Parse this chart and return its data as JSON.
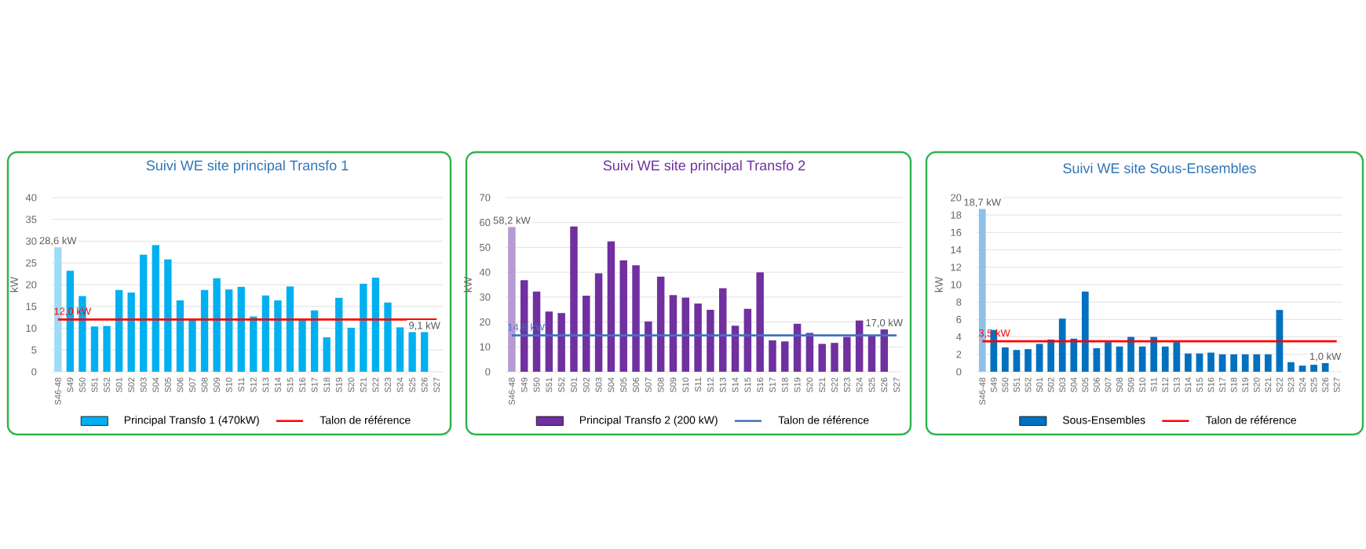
{
  "chart_data": [
    {
      "type": "bar",
      "title": "Suivi WE site principal Transfo 1",
      "ylabel": "kW",
      "categories": [
        "S46-48",
        "S49",
        "S50",
        "S51",
        "S52",
        "S01",
        "S02",
        "S03",
        "S04",
        "S05",
        "S06",
        "S07",
        "S08",
        "S09",
        "S10",
        "S11",
        "S12",
        "S13",
        "S14",
        "S15",
        "S16",
        "S17",
        "S18",
        "S19",
        "S20",
        "S21",
        "S22",
        "S23",
        "S24",
        "S25",
        "S26",
        "S27"
      ],
      "ylim": [
        0,
        40
      ],
      "yticks": [
        0,
        5,
        10,
        15,
        20,
        25,
        30,
        35,
        40
      ],
      "grid": "y",
      "legend": "bottom",
      "series": [
        {
          "name": "Principal Transfo 1 (470kW)",
          "color": "#00b0f0",
          "colors": [
            "#9fdcf5",
            "#00b0f0",
            "#00b0f0",
            "#00b0f0",
            "#00b0f0",
            "#00b0f0",
            "#00b0f0",
            "#00b0f0",
            "#00b0f0",
            "#00b0f0",
            "#00b0f0",
            "#00b0f0",
            "#00b0f0",
            "#00b0f0",
            "#00b0f0",
            "#00b0f0",
            "#00b0f0",
            "#00b0f0",
            "#00b0f0",
            "#00b0f0",
            "#00b0f0",
            "#00b0f0",
            "#00b0f0",
            "#00b0f0",
            "#00b0f0",
            "#00b0f0",
            "#00b0f0",
            "#00b0f0",
            "#00b0f0",
            "#00b0f0",
            "#00b0f0",
            "#00b0f0"
          ],
          "values": [
            28.6,
            23.2,
            17.4,
            10.4,
            10.5,
            18.8,
            18.2,
            26.9,
            29.1,
            25.8,
            16.4,
            12.0,
            18.8,
            21.5,
            18.9,
            19.5,
            12.7,
            17.5,
            16.4,
            19.6,
            12.0,
            14.1,
            7.9,
            17.0,
            10.1,
            20.2,
            21.6,
            15.9,
            10.2,
            9.1,
            9.1,
            null
          ],
          "value_labels": [
            "28,6 kW",
            null,
            null,
            null,
            null,
            null,
            null,
            null,
            null,
            null,
            null,
            null,
            null,
            null,
            null,
            null,
            null,
            null,
            null,
            null,
            null,
            null,
            null,
            null,
            null,
            null,
            null,
            null,
            null,
            null,
            "9,1 kW",
            null
          ]
        },
        {
          "type": "line",
          "name": "Talon de référence",
          "color": "#ff0000",
          "values": [
            12.0,
            12.0,
            12.0,
            12.0,
            12.0,
            12.0,
            12.0,
            12.0,
            12.0,
            12.0,
            12.0,
            12.0,
            12.0,
            12.0,
            12.0,
            12.0,
            12.0,
            12.0,
            12.0,
            12.0,
            12.0,
            12.0,
            12.0,
            12.0,
            12.0,
            12.0,
            12.0,
            12.0,
            12.0,
            12.0,
            12.0,
            12.0
          ],
          "value_labels": [
            "12,0 kW",
            null,
            null,
            null,
            null,
            null,
            null,
            null,
            null,
            null,
            null,
            null,
            null,
            null,
            null,
            null,
            null,
            null,
            null,
            null,
            null,
            null,
            null,
            null,
            null,
            null,
            null,
            null,
            null,
            null,
            null,
            null
          ]
        }
      ]
    },
    {
      "type": "bar",
      "title": "Suivi WE site principal Transfo 2",
      "ylabel": "kW",
      "categories": [
        "S46-48",
        "S49",
        "S50",
        "S51",
        "S52",
        "S01",
        "S02",
        "S03",
        "S04",
        "S05",
        "S06",
        "S07",
        "S08",
        "S09",
        "S10",
        "S11",
        "S12",
        "S13",
        "S14",
        "S15",
        "S16",
        "S17",
        "S18",
        "S19",
        "S20",
        "S21",
        "S22",
        "S23",
        "S24",
        "S25",
        "S26",
        "S27"
      ],
      "ylim": [
        0,
        70
      ],
      "yticks": [
        0,
        10,
        20,
        30,
        40,
        50,
        60,
        70
      ],
      "grid": "y",
      "legend": "bottom",
      "series": [
        {
          "name": "Principal Transfo 2 (200 kW)",
          "color": "#7030a0",
          "colors": [
            "#b89ad2",
            "#7030a0",
            "#7030a0",
            "#7030a0",
            "#7030a0",
            "#7030a0",
            "#7030a0",
            "#7030a0",
            "#7030a0",
            "#7030a0",
            "#7030a0",
            "#7030a0",
            "#7030a0",
            "#7030a0",
            "#7030a0",
            "#7030a0",
            "#7030a0",
            "#7030a0",
            "#7030a0",
            "#7030a0",
            "#7030a0",
            "#7030a0",
            "#7030a0",
            "#7030a0",
            "#7030a0",
            "#7030a0",
            "#7030a0",
            "#7030a0",
            "#7030a0",
            "#7030a0",
            "#7030a0",
            "#7030a0"
          ],
          "values": [
            58.2,
            36.8,
            32.2,
            24.2,
            23.6,
            58.4,
            30.6,
            39.6,
            52.4,
            44.8,
            42.8,
            20.2,
            38.2,
            30.8,
            29.8,
            27.4,
            24.9,
            33.6,
            18.5,
            25.3,
            40.0,
            12.6,
            12.2,
            19.3,
            15.6,
            11.2,
            11.6,
            14.0,
            20.6,
            14.6,
            17.0,
            null
          ],
          "value_labels": [
            "58,2 kW",
            null,
            null,
            null,
            null,
            null,
            null,
            null,
            null,
            null,
            null,
            null,
            null,
            null,
            null,
            null,
            null,
            null,
            null,
            null,
            null,
            null,
            null,
            null,
            null,
            null,
            null,
            null,
            null,
            null,
            "17,0 kW",
            null
          ]
        },
        {
          "type": "line",
          "name": "Talon de référence",
          "color": "#4472c4",
          "values": [
            14.6,
            14.6,
            14.6,
            14.6,
            14.6,
            14.6,
            14.6,
            14.6,
            14.6,
            14.6,
            14.6,
            14.6,
            14.6,
            14.6,
            14.6,
            14.6,
            14.6,
            14.6,
            14.6,
            14.6,
            14.6,
            14.6,
            14.6,
            14.6,
            14.6,
            14.6,
            14.6,
            14.6,
            14.6,
            14.6,
            14.6,
            14.6
          ],
          "value_labels": [
            "14,6 kW",
            null,
            null,
            null,
            null,
            null,
            null,
            null,
            null,
            null,
            null,
            null,
            null,
            null,
            null,
            null,
            null,
            null,
            null,
            null,
            null,
            null,
            null,
            null,
            null,
            null,
            null,
            null,
            null,
            null,
            null,
            null
          ]
        }
      ]
    },
    {
      "type": "bar",
      "title": "Suivi WE site Sous-Ensembles",
      "ylabel": "kW",
      "categories": [
        "S46-48",
        "S49",
        "S50",
        "S51",
        "S52",
        "S01",
        "S02",
        "S03",
        "S04",
        "S05",
        "S06",
        "S07",
        "S08",
        "S09",
        "S10",
        "S11",
        "S12",
        "S13",
        "S14",
        "S15",
        "S16",
        "S17",
        "S18",
        "S19",
        "S20",
        "S21",
        "S22",
        "S23",
        "S24",
        "S25",
        "S26",
        "S27"
      ],
      "ylim": [
        0,
        20
      ],
      "yticks": [
        0,
        2,
        4,
        6,
        8,
        10,
        12,
        14,
        16,
        18,
        20
      ],
      "grid": "y",
      "legend": "bottom",
      "series": [
        {
          "name": "Sous-Ensembles",
          "color": "#0070c0",
          "colors": [
            "#8fc0e8",
            "#0070c0",
            "#0070c0",
            "#0070c0",
            "#0070c0",
            "#0070c0",
            "#0070c0",
            "#0070c0",
            "#0070c0",
            "#0070c0",
            "#0070c0",
            "#0070c0",
            "#0070c0",
            "#0070c0",
            "#0070c0",
            "#0070c0",
            "#0070c0",
            "#0070c0",
            "#0070c0",
            "#0070c0",
            "#0070c0",
            "#0070c0",
            "#0070c0",
            "#0070c0",
            "#0070c0",
            "#0070c0",
            "#0070c0",
            "#0070c0",
            "#0070c0",
            "#0070c0",
            "#0070c0",
            "#0070c0"
          ],
          "values": [
            18.7,
            4.8,
            2.8,
            2.5,
            2.6,
            3.2,
            3.7,
            6.1,
            3.8,
            9.2,
            2.7,
            3.4,
            2.9,
            4.0,
            2.9,
            4.0,
            2.9,
            3.4,
            2.1,
            2.1,
            2.2,
            2.0,
            2.0,
            2.0,
            2.0,
            2.0,
            7.1,
            1.1,
            0.7,
            0.8,
            1.0,
            null
          ],
          "value_labels": [
            "18,7 kW",
            null,
            null,
            null,
            null,
            null,
            null,
            null,
            null,
            null,
            null,
            null,
            null,
            null,
            null,
            null,
            null,
            null,
            null,
            null,
            null,
            null,
            null,
            null,
            null,
            null,
            null,
            null,
            null,
            null,
            "1,0 kW",
            null
          ]
        },
        {
          "type": "line",
          "name": "Talon de référence",
          "color": "#ff0000",
          "values": [
            3.5,
            3.5,
            3.5,
            3.5,
            3.5,
            3.5,
            3.5,
            3.5,
            3.5,
            3.5,
            3.5,
            3.5,
            3.5,
            3.5,
            3.5,
            3.5,
            3.5,
            3.5,
            3.5,
            3.5,
            3.5,
            3.5,
            3.5,
            3.5,
            3.5,
            3.5,
            3.5,
            3.5,
            3.5,
            3.5,
            3.5,
            3.5
          ],
          "value_labels": [
            "3,5 kW",
            null,
            null,
            null,
            null,
            null,
            null,
            null,
            null,
            null,
            null,
            null,
            null,
            null,
            null,
            null,
            null,
            null,
            null,
            null,
            null,
            null,
            null,
            null,
            null,
            null,
            null,
            null,
            null,
            null,
            null,
            null
          ]
        }
      ]
    }
  ]
}
